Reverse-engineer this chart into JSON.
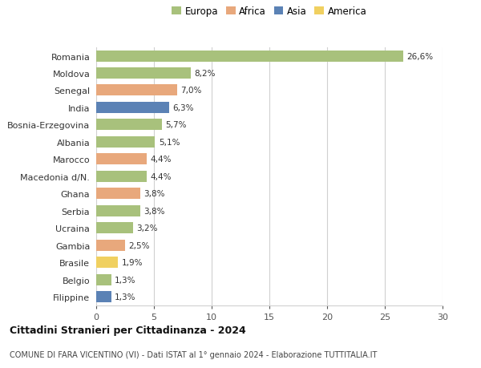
{
  "countries": [
    "Romania",
    "Moldova",
    "Senegal",
    "India",
    "Bosnia-Erzegovina",
    "Albania",
    "Marocco",
    "Macedonia d/N.",
    "Ghana",
    "Serbia",
    "Ucraina",
    "Gambia",
    "Brasile",
    "Belgio",
    "Filippine"
  ],
  "values": [
    26.6,
    8.2,
    7.0,
    6.3,
    5.7,
    5.1,
    4.4,
    4.4,
    3.8,
    3.8,
    3.2,
    2.5,
    1.9,
    1.3,
    1.3
  ],
  "continents": [
    "Europa",
    "Europa",
    "Africa",
    "Asia",
    "Europa",
    "Europa",
    "Africa",
    "Europa",
    "Africa",
    "Europa",
    "Europa",
    "Africa",
    "America",
    "Europa",
    "Asia"
  ],
  "colors": {
    "Europa": "#a8c17c",
    "Africa": "#e8a87c",
    "Asia": "#5b82b5",
    "America": "#f0d060"
  },
  "legend_order": [
    "Europa",
    "Africa",
    "Asia",
    "America"
  ],
  "title": "Cittadini Stranieri per Cittadinanza - 2024",
  "subtitle": "COMUNE DI FARA VICENTINO (VI) - Dati ISTAT al 1° gennaio 2024 - Elaborazione TUTTITALIA.IT",
  "xlim": [
    0,
    30
  ],
  "xticks": [
    0,
    5,
    10,
    15,
    20,
    25,
    30
  ],
  "background_color": "#ffffff",
  "grid_color": "#d0d0d0",
  "bar_height": 0.65
}
